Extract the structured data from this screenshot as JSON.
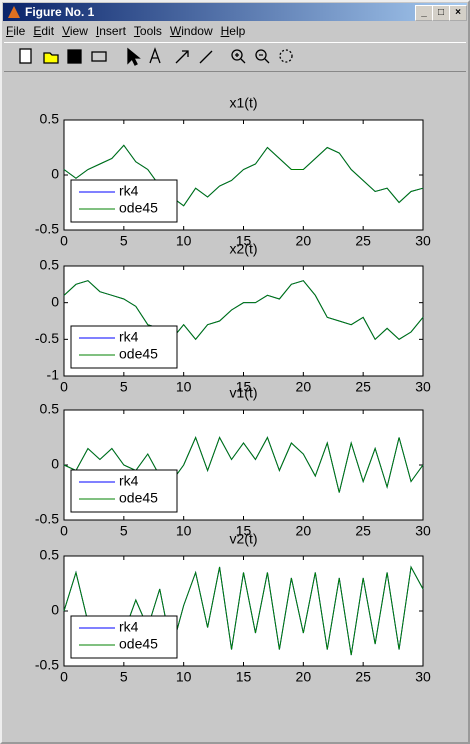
{
  "window": {
    "title": "Figure No. 1",
    "menu": [
      "File",
      "Edit",
      "View",
      "Insert",
      "Tools",
      "Window",
      "Help"
    ]
  },
  "chart_data": [
    {
      "type": "line",
      "title": "x1(t)",
      "legend": "lower left",
      "grid": false,
      "x": [
        0,
        1,
        2,
        3,
        4,
        5,
        6,
        7,
        8,
        9,
        10,
        11,
        12,
        13,
        14,
        15,
        16,
        17,
        18,
        19,
        20,
        21,
        22,
        23,
        24,
        25,
        26,
        27,
        28,
        29,
        30
      ],
      "series": [
        {
          "name": "rk4",
          "color": "#0000ff",
          "values": [
            0.05,
            -0.03,
            0.05,
            0.1,
            0.15,
            0.27,
            0.12,
            0.05,
            -0.1,
            -0.2,
            -0.28,
            -0.12,
            -0.2,
            -0.1,
            -0.05,
            0.05,
            0.1,
            0.25,
            0.15,
            0.05,
            0.05,
            0.15,
            0.25,
            0.2,
            0.05,
            -0.05,
            -0.15,
            -0.12,
            -0.25,
            -0.15,
            -0.12
          ]
        },
        {
          "name": "ode45",
          "color": "#008000",
          "values": [
            0.05,
            -0.03,
            0.05,
            0.1,
            0.15,
            0.27,
            0.12,
            0.05,
            -0.1,
            -0.2,
            -0.28,
            -0.12,
            -0.2,
            -0.1,
            -0.05,
            0.05,
            0.1,
            0.25,
            0.15,
            0.05,
            0.05,
            0.15,
            0.25,
            0.2,
            0.05,
            -0.05,
            -0.15,
            -0.12,
            -0.25,
            -0.15,
            -0.12
          ]
        }
      ],
      "xlim": [
        0,
        30
      ],
      "xticks": [
        0,
        5,
        10,
        15,
        20,
        25,
        30
      ],
      "ylim": [
        -0.5,
        0.5
      ],
      "yticks": [
        -0.5,
        0,
        0.5
      ]
    },
    {
      "type": "line",
      "title": "x2(t)",
      "legend": "lower left",
      "grid": false,
      "x": [
        0,
        1,
        2,
        3,
        4,
        5,
        6,
        7,
        8,
        9,
        10,
        11,
        12,
        13,
        14,
        15,
        16,
        17,
        18,
        19,
        20,
        21,
        22,
        23,
        24,
        25,
        26,
        27,
        28,
        29,
        30
      ],
      "series": [
        {
          "name": "rk4",
          "color": "#0000ff",
          "values": [
            0.1,
            0.25,
            0.3,
            0.15,
            0.1,
            0.05,
            -0.05,
            -0.3,
            -0.35,
            -0.5,
            -0.3,
            -0.5,
            -0.3,
            -0.25,
            -0.1,
            0,
            0,
            0.1,
            0.05,
            0.25,
            0.3,
            0.1,
            -0.2,
            -0.25,
            -0.3,
            -0.2,
            -0.5,
            -0.35,
            -0.5,
            -0.4,
            -0.2
          ]
        },
        {
          "name": "ode45",
          "color": "#008000",
          "values": [
            0.1,
            0.25,
            0.3,
            0.15,
            0.1,
            0.05,
            -0.05,
            -0.3,
            -0.35,
            -0.5,
            -0.3,
            -0.5,
            -0.3,
            -0.25,
            -0.1,
            0,
            0,
            0.1,
            0.05,
            0.25,
            0.3,
            0.1,
            -0.2,
            -0.25,
            -0.3,
            -0.2,
            -0.5,
            -0.35,
            -0.5,
            -0.4,
            -0.2
          ]
        }
      ],
      "xlim": [
        0,
        30
      ],
      "xticks": [
        0,
        5,
        10,
        15,
        20,
        25,
        30
      ],
      "ylim": [
        -1,
        0.5
      ],
      "yticks": [
        -1,
        -0.5,
        0,
        0.5
      ]
    },
    {
      "type": "line",
      "title": "v1(t)",
      "legend": "lower left",
      "grid": false,
      "x": [
        0,
        1,
        2,
        3,
        4,
        5,
        6,
        7,
        8,
        9,
        10,
        11,
        12,
        13,
        14,
        15,
        16,
        17,
        18,
        19,
        20,
        21,
        22,
        23,
        24,
        25,
        26,
        27,
        28,
        29,
        30
      ],
      "series": [
        {
          "name": "rk4",
          "color": "#0000ff",
          "values": [
            0,
            -0.05,
            0.15,
            0.05,
            0.15,
            0,
            -0.05,
            0.1,
            -0.1,
            -0.15,
            0,
            0.25,
            -0.05,
            0.25,
            0.05,
            0.2,
            0.05,
            0.25,
            -0.05,
            0.2,
            0.1,
            -0.1,
            0.2,
            -0.25,
            0.2,
            -0.15,
            0.15,
            -0.2,
            0.25,
            -0.15,
            0
          ]
        },
        {
          "name": "ode45",
          "color": "#008000",
          "values": [
            0,
            -0.05,
            0.15,
            0.05,
            0.15,
            0,
            -0.05,
            0.1,
            -0.1,
            -0.15,
            0,
            0.25,
            -0.05,
            0.25,
            0.05,
            0.2,
            0.05,
            0.25,
            -0.05,
            0.2,
            0.1,
            -0.1,
            0.2,
            -0.25,
            0.2,
            -0.15,
            0.15,
            -0.2,
            0.25,
            -0.15,
            0
          ]
        }
      ],
      "xlim": [
        0,
        30
      ],
      "xticks": [
        0,
        5,
        10,
        15,
        20,
        25,
        30
      ],
      "ylim": [
        -0.5,
        0.5
      ],
      "yticks": [
        -0.5,
        0,
        0.5
      ]
    },
    {
      "type": "line",
      "title": "v2(t)",
      "legend": "lower left",
      "grid": false,
      "x": [
        0,
        1,
        2,
        3,
        4,
        5,
        6,
        7,
        8,
        9,
        10,
        11,
        12,
        13,
        14,
        15,
        16,
        17,
        18,
        19,
        20,
        21,
        22,
        23,
        24,
        25,
        26,
        27,
        28,
        29,
        30
      ],
      "series": [
        {
          "name": "rk4",
          "color": "#0000ff",
          "values": [
            0,
            0.35,
            -0.1,
            -0.05,
            -0.05,
            -0.2,
            0.1,
            -0.15,
            0.2,
            -0.35,
            0.05,
            0.35,
            -0.15,
            0.4,
            -0.35,
            0.35,
            -0.2,
            0.35,
            -0.35,
            0.3,
            -0.2,
            0.35,
            -0.35,
            0.3,
            -0.4,
            0.3,
            -0.3,
            0.35,
            -0.35,
            0.4,
            0.2
          ]
        },
        {
          "name": "ode45",
          "color": "#008000",
          "values": [
            0,
            0.35,
            -0.1,
            -0.05,
            -0.05,
            -0.2,
            0.1,
            -0.15,
            0.2,
            -0.35,
            0.05,
            0.35,
            -0.15,
            0.4,
            -0.35,
            0.35,
            -0.2,
            0.35,
            -0.35,
            0.3,
            -0.2,
            0.35,
            -0.35,
            0.3,
            -0.4,
            0.3,
            -0.3,
            0.35,
            -0.35,
            0.4,
            0.2
          ]
        }
      ],
      "xlim": [
        0,
        30
      ],
      "xticks": [
        0,
        5,
        10,
        15,
        20,
        25,
        30
      ],
      "ylim": [
        -0.5,
        0.5
      ],
      "yticks": [
        -0.5,
        0,
        0.5
      ]
    }
  ]
}
